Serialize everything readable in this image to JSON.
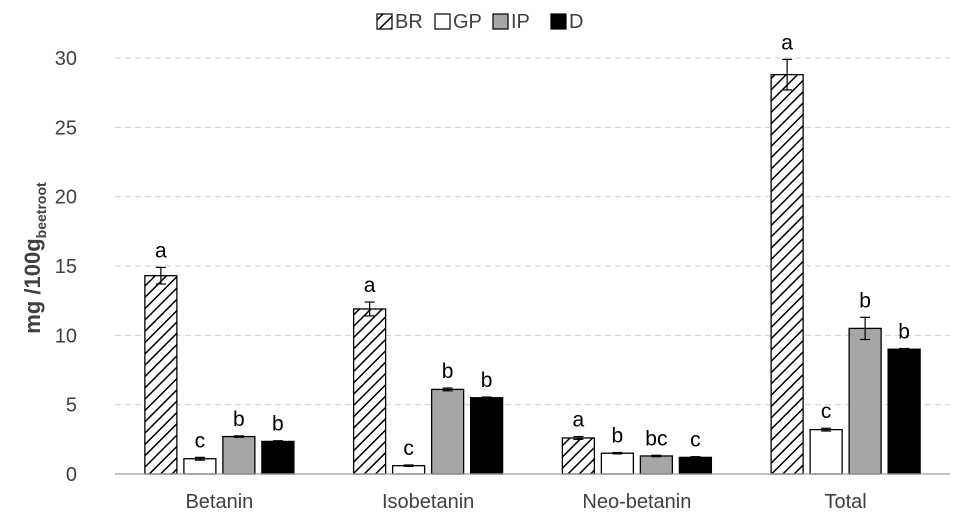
{
  "chart_data": {
    "type": "bar",
    "categories": [
      "Betanin",
      "Isobetanin",
      "Neo-betanin",
      "Total"
    ],
    "series": [
      {
        "name": "BR",
        "values": [
          14.3,
          11.9,
          2.6,
          28.8
        ],
        "errors": [
          0.6,
          0.5,
          0.1,
          1.1
        ],
        "letters": [
          "a",
          "a",
          "a",
          "a"
        ],
        "fill": "hatch"
      },
      {
        "name": "GP",
        "values": [
          1.1,
          0.6,
          1.5,
          3.2
        ],
        "errors": [
          0.1,
          0.05,
          0.05,
          0.1
        ],
        "letters": [
          "c",
          "c",
          "b",
          "c"
        ],
        "fill": "#ffffff"
      },
      {
        "name": "IP",
        "values": [
          2.7,
          6.1,
          1.3,
          10.5
        ],
        "errors": [
          0.05,
          0.1,
          0.05,
          0.8
        ],
        "letters": [
          "b",
          "b",
          "bc",
          "b"
        ],
        "fill": "#a6a6a6"
      },
      {
        "name": "D",
        "values": [
          2.35,
          5.5,
          1.2,
          9.0
        ],
        "errors": [
          0.05,
          0.05,
          0.05,
          0.05
        ],
        "letters": [
          "b",
          "b",
          "c",
          "b"
        ],
        "fill": "#000000"
      }
    ],
    "ylabel": "mg /100g",
    "ylabel_subscript": "beetroot",
    "ylim": [
      0,
      30
    ],
    "yticks": [
      0,
      5,
      10,
      15,
      20,
      25,
      30
    ],
    "grid": true,
    "grid_style": "dashed",
    "legend_position": "top-center"
  }
}
